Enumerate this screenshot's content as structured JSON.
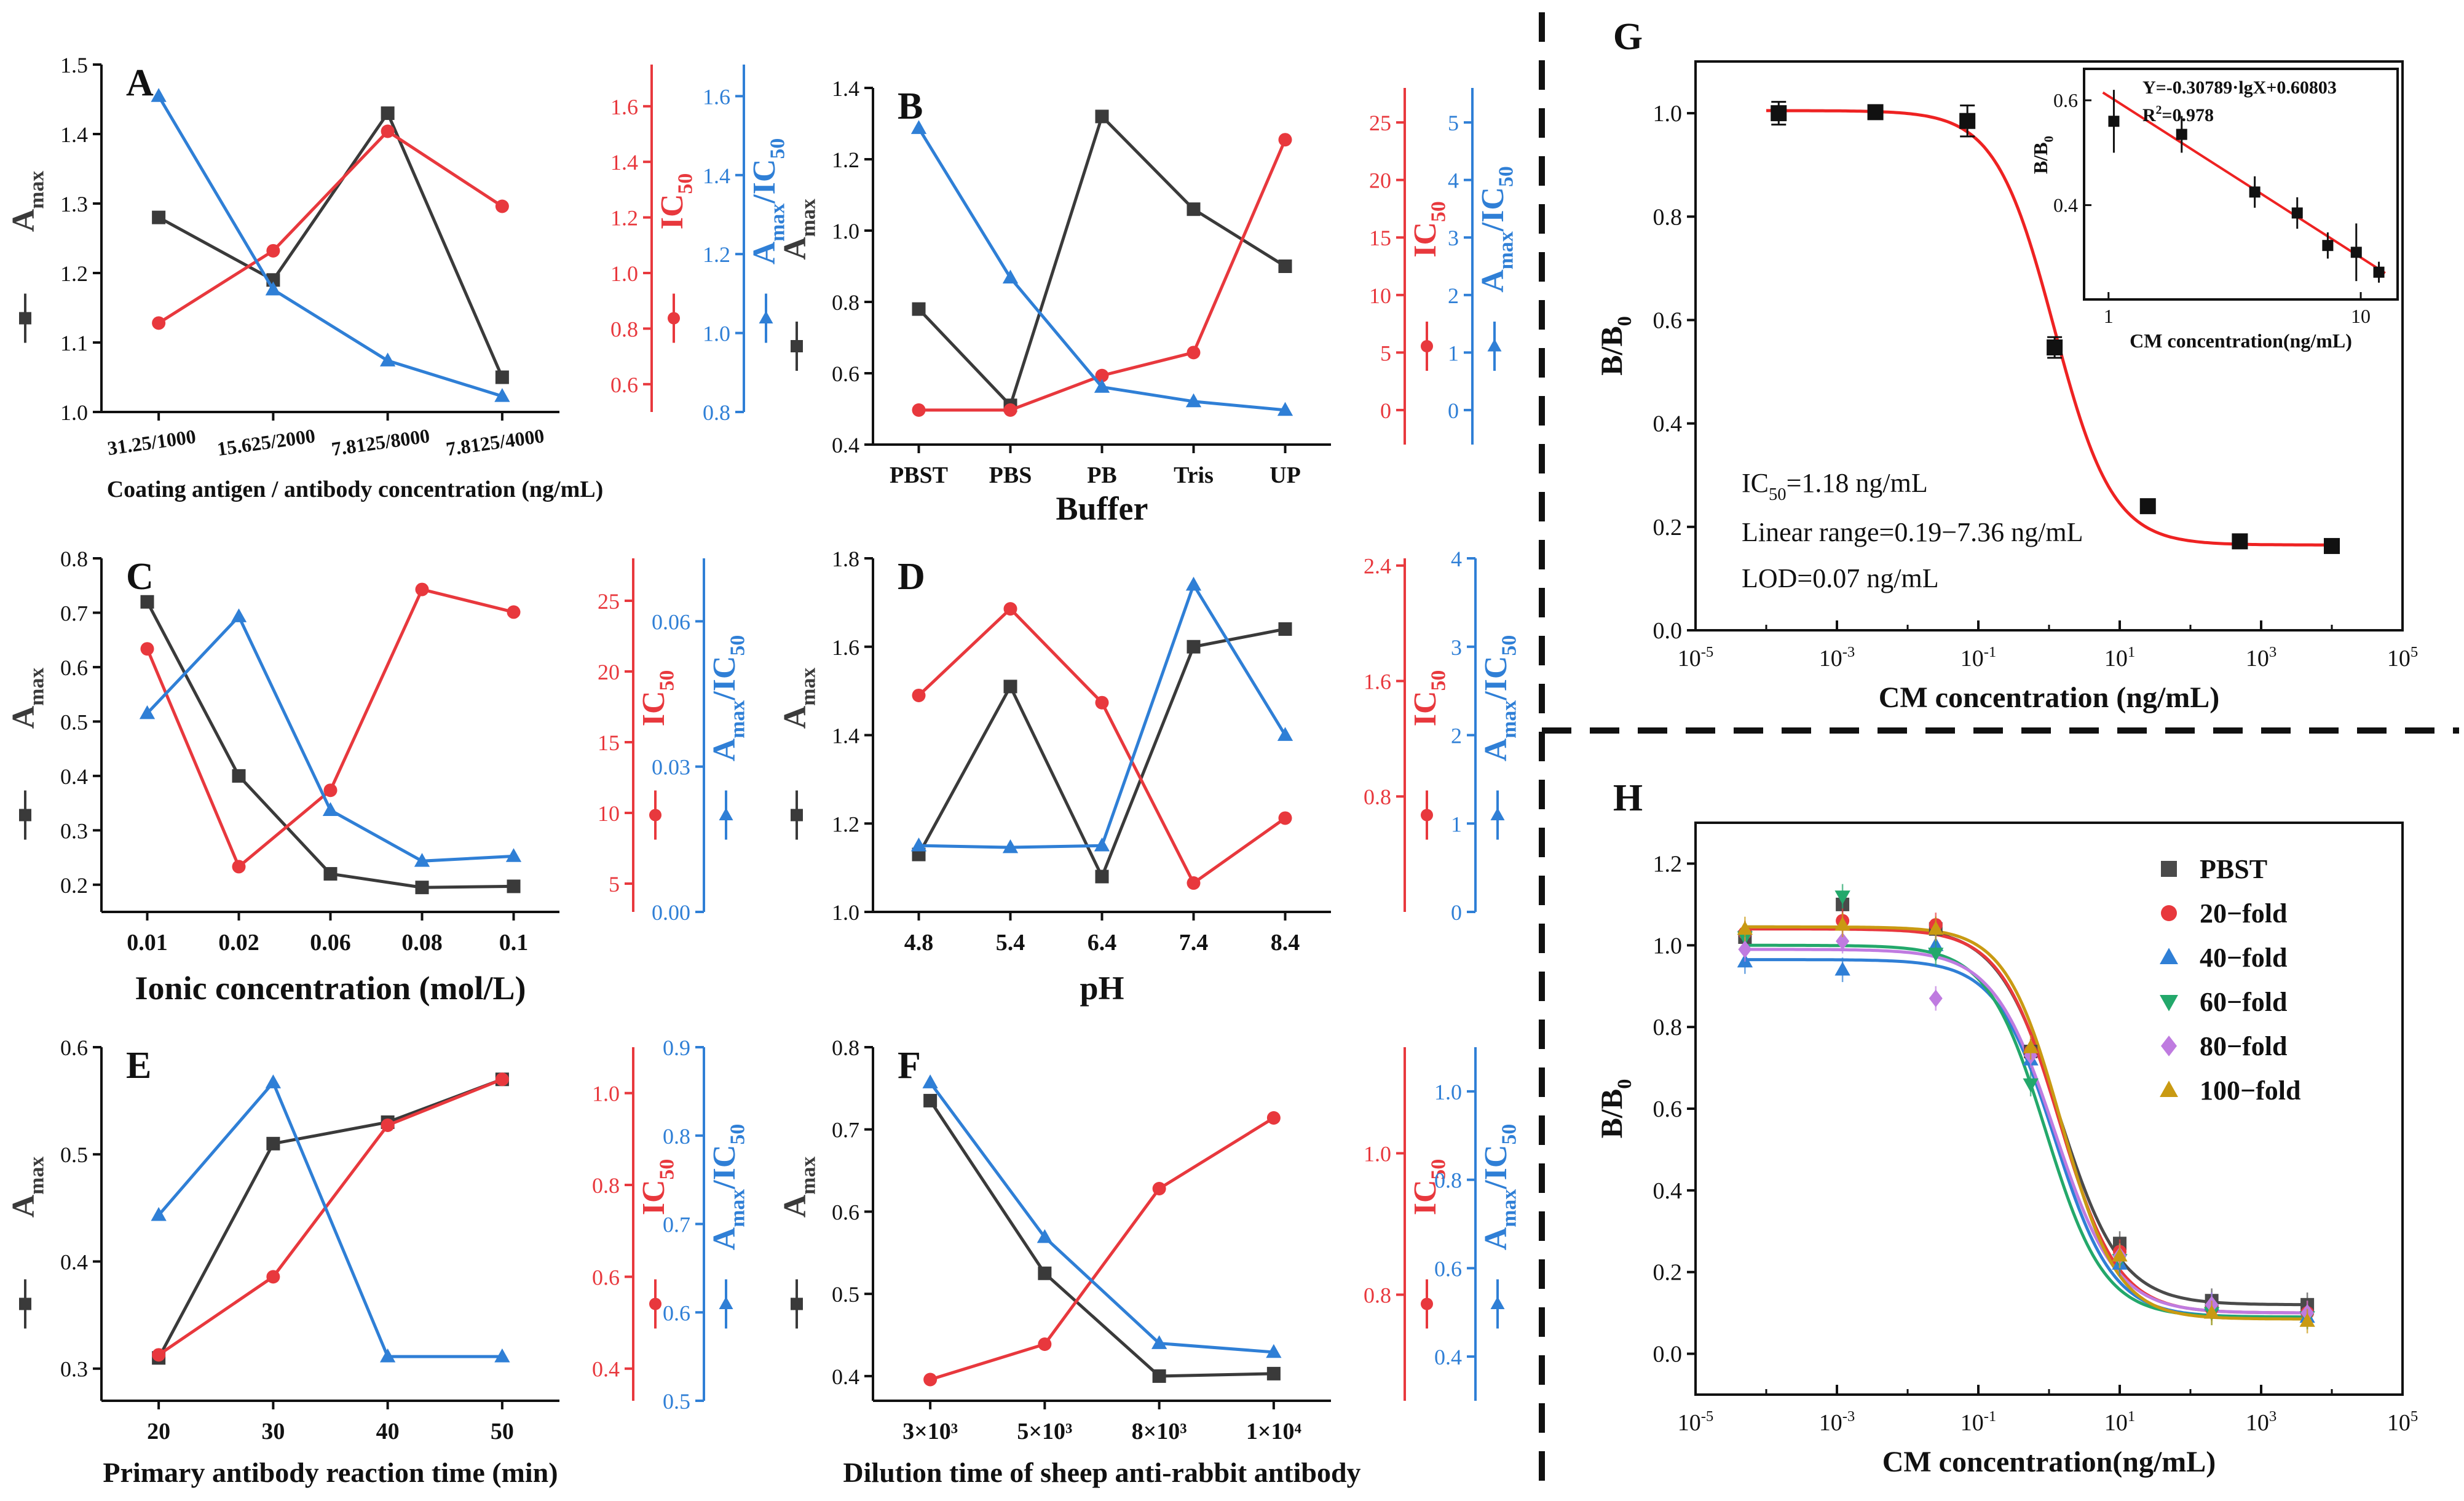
{
  "colors": {
    "black": "#3a3a3a",
    "red": "#e8383d",
    "blue": "#2f7fd6",
    "fit_red": "#ee2222",
    "purple": "#bf7be0",
    "green": "#23a86b",
    "gold": "#c99a12"
  },
  "chart_data": [
    {
      "id": "A",
      "type": "line",
      "label": "A",
      "categories": [
        "31.25/1000",
        "15.625/2000",
        "7.8125/8000",
        "7.8125/4000"
      ],
      "xlabel": "Coating antigen / antibody concentration (ng/mL)",
      "axes": [
        {
          "label": "A",
          "label_sub": "max",
          "ticks": [
            "1.0",
            "1.1",
            "1.2",
            "1.3",
            "1.4",
            "1.5"
          ],
          "ylim": [
            1.0,
            1.5
          ]
        },
        {
          "label": "IC",
          "label_sub": "50",
          "ticks": [
            "0.6",
            "0.8",
            "1.0",
            "1.2",
            "1.4",
            "1.6"
          ],
          "ylim": [
            0.5,
            1.75
          ]
        },
        {
          "label": "A",
          "label_sub": "max",
          "label_tail": "/IC",
          "label_sub2": "50",
          "ticks": [
            "0.8",
            "1.0",
            "1.2",
            "1.4",
            "1.6"
          ],
          "ylim": [
            0.8,
            1.68
          ]
        }
      ],
      "series": [
        {
          "name": "Amax",
          "marker": "square",
          "values": [
            1.28,
            1.19,
            1.43,
            1.05
          ]
        },
        {
          "name": "IC50",
          "marker": "circle",
          "values": [
            0.82,
            1.08,
            1.51,
            1.24
          ]
        },
        {
          "name": "Amax/IC50",
          "marker": "triangle",
          "values": [
            1.6,
            1.11,
            0.93,
            0.84
          ]
        }
      ]
    },
    {
      "id": "B",
      "type": "line",
      "label": "B",
      "categories": [
        "PBST",
        "PBS",
        "PB",
        "Tris",
        "UP"
      ],
      "xlabel": "Buffer",
      "axes": [
        {
          "label": "A",
          "label_sub": "max",
          "ticks": [
            "0.4",
            "0.6",
            "0.8",
            "1.0",
            "1.2",
            "1.4"
          ],
          "ylim": [
            0.4,
            1.4
          ]
        },
        {
          "label": "IC",
          "label_sub": "50",
          "ticks": [
            "0",
            "5",
            "10",
            "15",
            "20",
            "25"
          ],
          "ylim": [
            -3,
            28
          ]
        },
        {
          "label": "A",
          "label_sub": "max",
          "label_tail": "/IC",
          "label_sub2": "50",
          "ticks": [
            "0",
            "1",
            "2",
            "3",
            "4",
            "5"
          ],
          "ylim": [
            -0.6,
            5.6
          ]
        }
      ],
      "series": [
        {
          "name": "Amax",
          "marker": "square",
          "values": [
            0.78,
            0.51,
            1.32,
            1.06,
            0.9
          ]
        },
        {
          "name": "IC50",
          "marker": "circle",
          "values": [
            0.0,
            0.0,
            3.0,
            5.0,
            23.5
          ]
        },
        {
          "name": "Amax/IC50",
          "marker": "triangle",
          "values": [
            4.9,
            2.3,
            0.4,
            0.15,
            0.0
          ]
        }
      ]
    },
    {
      "id": "C",
      "type": "line",
      "label": "C",
      "categories": [
        "0.01",
        "0.02",
        "0.06",
        "0.08",
        "0.1"
      ],
      "xlabel": "Ionic concentration (mol/L)",
      "axes": [
        {
          "label": "A",
          "label_sub": "max",
          "ticks": [
            "0.2",
            "0.3",
            "0.4",
            "0.5",
            "0.6",
            "0.7",
            "0.8"
          ],
          "ylim": [
            0.15,
            0.8
          ]
        },
        {
          "label": "IC",
          "label_sub": "50",
          "ticks": [
            "5",
            "10",
            "15",
            "20",
            "25"
          ],
          "ylim": [
            3,
            28
          ]
        },
        {
          "label": "A",
          "label_sub": "max",
          "label_tail": "/IC",
          "label_sub2": "50",
          "ticks": [
            "0.00",
            "0.03",
            "0.06"
          ],
          "ylim": [
            0.0,
            0.073
          ]
        }
      ],
      "series": [
        {
          "name": "Amax",
          "marker": "square",
          "values": [
            0.72,
            0.4,
            0.22,
            0.195,
            0.197
          ]
        },
        {
          "name": "IC50",
          "marker": "circle",
          "values": [
            21.6,
            6.2,
            11.6,
            25.8,
            24.2
          ]
        },
        {
          "name": "Amax/IC50",
          "marker": "triangle",
          "values": [
            0.041,
            0.061,
            0.021,
            0.0105,
            0.0115
          ]
        }
      ]
    },
    {
      "id": "D",
      "type": "line",
      "label": "D",
      "categories": [
        "4.8",
        "5.4",
        "6.4",
        "7.4",
        "8.4"
      ],
      "xlabel": "pH",
      "axes": [
        {
          "label": "A",
          "label_sub": "max",
          "ticks": [
            "1.0",
            "1.2",
            "1.4",
            "1.6",
            "1.8"
          ],
          "ylim": [
            1.0,
            1.8
          ]
        },
        {
          "label": "IC",
          "label_sub": "50",
          "ticks": [
            "0.8",
            "1.6",
            "2.4"
          ],
          "ylim": [
            0.0,
            2.45
          ]
        },
        {
          "label": "A",
          "label_sub": "max",
          "label_tail": "/IC",
          "label_sub2": "50",
          "ticks": [
            "0",
            "1",
            "2",
            "3",
            "4"
          ],
          "ylim": [
            0.0,
            4.0
          ]
        }
      ],
      "series": [
        {
          "name": "Amax",
          "marker": "square",
          "values": [
            1.13,
            1.51,
            1.08,
            1.6,
            1.64
          ]
        },
        {
          "name": "IC50",
          "marker": "circle",
          "values": [
            1.5,
            2.1,
            1.45,
            0.2,
            0.65
          ]
        },
        {
          "name": "Amax/IC50",
          "marker": "triangle",
          "values": [
            0.75,
            0.73,
            0.75,
            3.7,
            2.0
          ]
        }
      ]
    },
    {
      "id": "E",
      "type": "line",
      "label": "E",
      "categories": [
        "20",
        "30",
        "40",
        "50"
      ],
      "xlabel": "Primary antibody reaction time (min)",
      "axes": [
        {
          "label": "A",
          "label_sub": "max",
          "ticks": [
            "0.3",
            "0.4",
            "0.5",
            "0.6"
          ],
          "ylim": [
            0.27,
            0.6
          ]
        },
        {
          "label": "IC",
          "label_sub": "50",
          "ticks": [
            "0.4",
            "0.6",
            "0.8",
            "1.0"
          ],
          "ylim": [
            0.33,
            1.1
          ]
        },
        {
          "label": "A",
          "label_sub": "max",
          "label_tail": "/IC",
          "label_sub2": "50",
          "ticks": [
            "0.5",
            "0.6",
            "0.7",
            "0.8",
            "0.9"
          ],
          "ylim": [
            0.5,
            0.9
          ]
        }
      ],
      "series": [
        {
          "name": "Amax",
          "marker": "square",
          "values": [
            0.31,
            0.51,
            0.53,
            0.57
          ]
        },
        {
          "name": "IC50",
          "marker": "circle",
          "values": [
            0.43,
            0.6,
            0.93,
            1.03
          ]
        },
        {
          "name": "Amax/IC50",
          "marker": "triangle",
          "values": [
            0.71,
            0.86,
            0.55,
            0.55
          ]
        }
      ]
    },
    {
      "id": "F",
      "type": "line",
      "label": "F",
      "categories": [
        "3×10³",
        "5×10³",
        "8×10³",
        "1×10⁴"
      ],
      "xlabel": "Dilution time of sheep anti-rabbit antibody",
      "axes": [
        {
          "label": "A",
          "label_sub": "max",
          "ticks": [
            "0.4",
            "0.5",
            "0.6",
            "0.7",
            "0.8"
          ],
          "ylim": [
            0.37,
            0.8
          ]
        },
        {
          "label": "IC",
          "label_sub": "50",
          "ticks": [
            "0.8",
            "1.0"
          ],
          "ylim": [
            0.65,
            1.15
          ]
        },
        {
          "label": "A",
          "label_sub": "max",
          "label_tail": "/IC",
          "label_sub2": "50",
          "ticks": [
            "0.4",
            "0.6",
            "0.8",
            "1.0"
          ],
          "ylim": [
            0.3,
            1.1
          ]
        }
      ],
      "series": [
        {
          "name": "Amax",
          "marker": "square",
          "values": [
            0.735,
            0.525,
            0.4,
            0.403
          ]
        },
        {
          "name": "IC50",
          "marker": "circle",
          "values": [
            0.68,
            0.73,
            0.95,
            1.05
          ]
        },
        {
          "name": "Amax/IC50",
          "marker": "triangle",
          "values": [
            1.02,
            0.67,
            0.43,
            0.41
          ]
        }
      ]
    },
    {
      "id": "G",
      "type": "scatter",
      "label": "G",
      "xlabel": "CM concentration (ng/mL)",
      "ylabel": "B/B",
      "ylabel_sub": "0",
      "xscale": "log",
      "xlim_exp": [
        -5,
        5
      ],
      "ylim": [
        0.0,
        1.1
      ],
      "xticks": [
        {
          "base": "10",
          "exp": "-5"
        },
        {
          "base": "10",
          "exp": "-3"
        },
        {
          "base": "10",
          "exp": "-1"
        },
        {
          "base": "10",
          "exp": "1"
        },
        {
          "base": "10",
          "exp": "3"
        },
        {
          "base": "10",
          "exp": "5"
        }
      ],
      "yticks": [
        "0.0",
        "0.2",
        "0.4",
        "0.6",
        "0.8",
        "1.0"
      ],
      "points": {
        "x": [
          0.00015,
          0.0035,
          0.07,
          1.2,
          25,
          500,
          10000
        ],
        "y": [
          1.0,
          1.002,
          0.985,
          0.547,
          0.24,
          0.172,
          0.163
        ],
        "err": [
          0.022,
          0.012,
          0.03,
          0.02,
          0.01,
          0.01,
          0.012
        ]
      },
      "fit": {
        "top": 1.005,
        "bottom": 0.165,
        "ic50": 1.18,
        "slope": 1.05
      },
      "annotations": {
        "ic50_prefix": "IC",
        "ic50_sub": "50",
        "ic50_value": "=1.18 ng/mL",
        "linear_range": "Linear range=0.19−7.36 ng/mL",
        "lod": "LOD=0.07 ng/mL"
      },
      "inset": {
        "equation": "Y=-0.30789·lgX+0.60803",
        "r2_prefix": "R",
        "r2_sup": "2",
        "r2_value": "=0.978",
        "xlabel": "CM concentration(ng/mL)",
        "ylabel": "B/B",
        "ylabel_sub": "0",
        "xticks": [
          "1",
          "10"
        ],
        "yticks": [
          "0.4",
          "0.6"
        ],
        "ylim": [
          0.22,
          0.66
        ],
        "xlim": [
          0.8,
          14
        ],
        "points": {
          "x": [
            1.05,
            1.95,
            3.8,
            5.6,
            7.4,
            9.6,
            11.8
          ],
          "y": [
            0.56,
            0.535,
            0.425,
            0.385,
            0.323,
            0.31,
            0.272
          ],
          "err": [
            0.06,
            0.035,
            0.03,
            0.03,
            0.025,
            0.055,
            0.02
          ]
        },
        "line": {
          "slope": -0.30789,
          "intercept": 0.60803
        }
      }
    },
    {
      "id": "H",
      "type": "scatter",
      "label": "H",
      "xlabel": "CM concentration(ng/mL)",
      "ylabel": "B/B",
      "ylabel_sub": "0",
      "xscale": "log",
      "xlim_exp": [
        -5,
        5
      ],
      "ylim": [
        -0.1,
        1.3
      ],
      "xticks": [
        {
          "base": "10",
          "exp": "-5"
        },
        {
          "base": "10",
          "exp": "-3"
        },
        {
          "base": "10",
          "exp": "-1"
        },
        {
          "base": "10",
          "exp": "1"
        },
        {
          "base": "10",
          "exp": "3"
        },
        {
          "base": "10",
          "exp": "5"
        }
      ],
      "yticks": [
        "0.0",
        "0.2",
        "0.4",
        "0.6",
        "0.8",
        "1.0",
        "1.2"
      ],
      "x": [
        5e-05,
        0.0012,
        0.025,
        0.55,
        10,
        200,
        4500
      ],
      "series": [
        {
          "name": "PBST",
          "marker": "square",
          "color": "#4a4a4a",
          "values": [
            1.02,
            1.1,
            1.04,
            0.74,
            0.27,
            0.13,
            0.12
          ],
          "fit": {
            "top": 1.045,
            "bottom": 0.12,
            "ic50": 1.4,
            "slope": 1.0
          }
        },
        {
          "name": "20−fold",
          "marker": "circle",
          "color": "#e8383d",
          "values": [
            1.03,
            1.06,
            1.05,
            0.74,
            0.25,
            0.11,
            0.1
          ],
          "fit": {
            "top": 1.04,
            "bottom": 0.1,
            "ic50": 1.4,
            "slope": 1.05
          }
        },
        {
          "name": "40−fold",
          "marker": "triangle",
          "color": "#2f7fd6",
          "values": [
            0.96,
            0.94,
            1.0,
            0.72,
            0.22,
            0.12,
            0.09
          ],
          "fit": {
            "top": 0.965,
            "bottom": 0.09,
            "ic50": 1.2,
            "slope": 1.05
          }
        },
        {
          "name": "60−fold",
          "marker": "triangle-down",
          "color": "#23a86b",
          "values": [
            1.02,
            1.12,
            0.98,
            0.66,
            0.23,
            0.1,
            0.09
          ],
          "fit": {
            "top": 1.0,
            "bottom": 0.09,
            "ic50": 0.9,
            "slope": 1.05
          }
        },
        {
          "name": "80−fold",
          "marker": "diamond",
          "color": "#bf7be0",
          "values": [
            0.99,
            1.01,
            0.87,
            0.73,
            0.24,
            0.12,
            0.1
          ],
          "fit": {
            "top": 0.99,
            "bottom": 0.1,
            "ic50": 1.2,
            "slope": 1.0
          }
        },
        {
          "name": "100−fold",
          "marker": "triangle",
          "color": "#c99a12",
          "values": [
            1.04,
            1.05,
            1.04,
            0.75,
            0.24,
            0.1,
            0.08
          ],
          "fit": {
            "top": 1.045,
            "bottom": 0.085,
            "ic50": 1.5,
            "slope": 1.1
          }
        }
      ]
    }
  ]
}
